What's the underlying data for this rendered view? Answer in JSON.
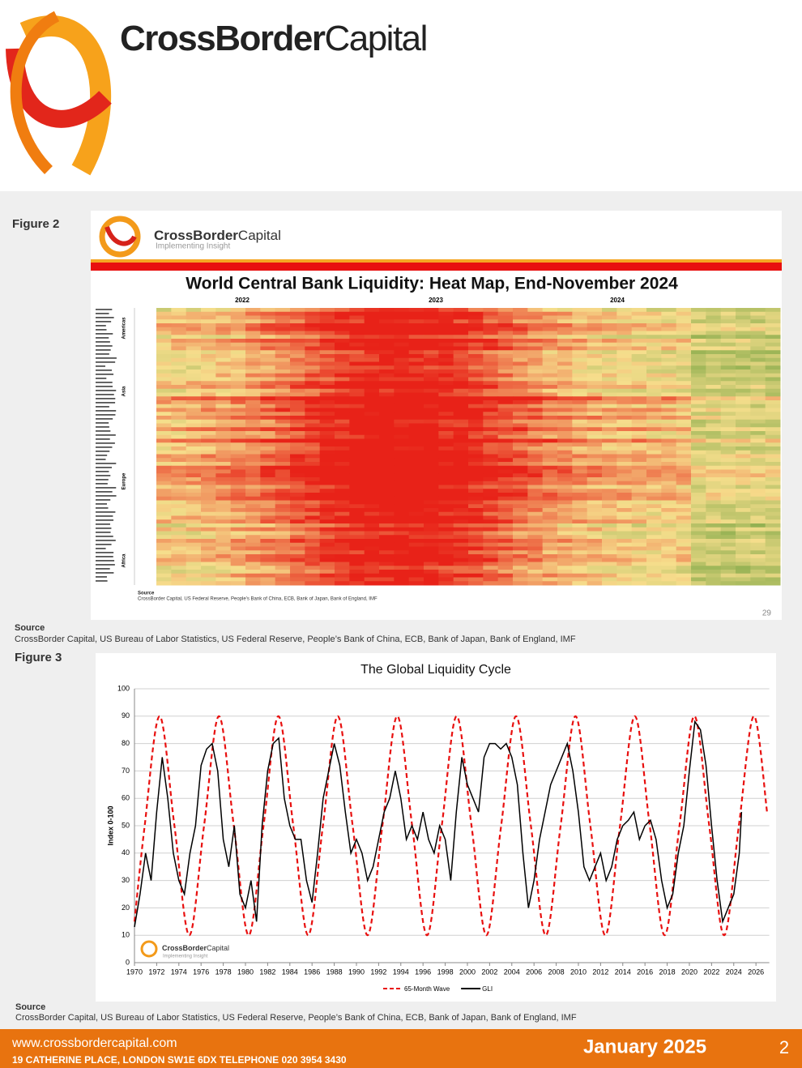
{
  "header": {
    "brand_bold": "CrossBorder",
    "brand_light": "Capital"
  },
  "figure2": {
    "label": "Figure 2",
    "logo_bold": "CrossBorder",
    "logo_light": "Capital",
    "logo_tagline": "Implementing Insight",
    "title": "World Central Bank Liquidity: Heat Map, End-November 2024",
    "years": [
      "2022",
      "2023",
      "2024"
    ],
    "regions": [
      "Americas",
      "Asia",
      "Europe",
      "Africa"
    ],
    "inner_source_label": "Source",
    "inner_source": "CrossBorder Capital, US Federal Reserve, People's Bank of China, ECB, Bank of Japan, Bank of England, IMF",
    "page_number": "29",
    "source_label": "Source",
    "source": "CrossBorder Capital, US Bureau of Labor Statistics, US Federal Reserve, People’s Bank of China, ECB, Bank of Japan, Bank of England, IMF"
  },
  "figure3": {
    "label": "Figure 3",
    "logo_bold": "CrossBorder",
    "logo_light": "Capital",
    "logo_tagline": "Implementing Insight",
    "source_label": "Source",
    "source": "CrossBorder Capital, US Bureau of Labor Statistics, US Federal Reserve, People’s Bank of China, ECB, Bank of Japan, Bank of England, IMF"
  },
  "chart_data": {
    "type": "line",
    "title": "The Global Liquidity Cycle",
    "y_label": "Index 0-100",
    "xlim": [
      1970,
      2027.2
    ],
    "ylim": [
      0,
      100
    ],
    "xticks": [
      1970,
      1972,
      1974,
      1976,
      1978,
      1980,
      1982,
      1984,
      1986,
      1988,
      1990,
      1992,
      1994,
      1996,
      1998,
      2000,
      2002,
      2004,
      2006,
      2008,
      2010,
      2012,
      2014,
      2016,
      2018,
      2020,
      2022,
      2024,
      2026
    ],
    "yticks": [
      0,
      10,
      20,
      30,
      40,
      50,
      60,
      70,
      80,
      90,
      100
    ],
    "series": [
      {
        "name": "65-Month Wave",
        "color": "#e8100f",
        "dashed": true,
        "smooth": true,
        "x": [
          1970,
          1970.92,
          1972.26,
          1973.6,
          1974.94,
          1976.27,
          1977.61,
          1978.95,
          1980.29,
          1981.63,
          1982.97,
          1984.31,
          1985.65,
          1986.98,
          1988.32,
          1989.66,
          1991.0,
          1992.34,
          1993.68,
          1995.02,
          1996.36,
          1997.69,
          1999.03,
          2000.37,
          2001.71,
          2003.04,
          2004.38,
          2005.72,
          2007.06,
          2008.4,
          2009.74,
          2011.08,
          2012.42,
          2013.75,
          2015.09,
          2016.43,
          2017.77,
          2019.11,
          2020.45,
          2021.79,
          2023.13,
          2024.46,
          2025.8,
          2027
        ],
        "values": [
          15,
          50,
          90,
          50,
          10,
          50,
          90,
          50,
          10,
          50,
          90,
          50,
          10,
          50,
          90,
          50,
          10,
          50,
          90,
          50,
          10,
          50,
          90,
          50,
          10,
          50,
          90,
          50,
          10,
          50,
          90,
          50,
          10,
          50,
          90,
          50,
          10,
          50,
          90,
          50,
          10,
          50,
          90,
          55
        ]
      },
      {
        "name": "GLI",
        "color": "#000000",
        "dashed": false,
        "smooth": false,
        "x": [
          1970,
          1970.5,
          1971,
          1971.5,
          1972,
          1972.5,
          1973,
          1973.5,
          1974,
          1974.5,
          1975,
          1975.5,
          1976,
          1976.5,
          1977,
          1977.5,
          1978,
          1978.5,
          1979,
          1979.5,
          1980,
          1980.5,
          1981,
          1981.5,
          1982,
          1982.5,
          1983,
          1983.5,
          1984,
          1984.5,
          1985,
          1985.5,
          1986,
          1986.5,
          1987,
          1987.5,
          1988,
          1988.5,
          1989,
          1989.5,
          1990,
          1990.5,
          1991,
          1991.5,
          1992,
          1992.5,
          1993,
          1993.5,
          1994,
          1994.5,
          1995,
          1995.5,
          1996,
          1996.5,
          1997,
          1997.5,
          1998,
          1998.5,
          1999,
          1999.5,
          2000,
          2000.5,
          2001,
          2001.5,
          2002,
          2002.5,
          2003,
          2003.5,
          2004,
          2004.5,
          2005,
          2005.5,
          2006,
          2006.5,
          2007,
          2007.5,
          2008,
          2008.5,
          2009,
          2009.5,
          2010,
          2010.5,
          2011,
          2011.5,
          2012,
          2012.5,
          2013,
          2013.5,
          2014,
          2014.5,
          2015,
          2015.5,
          2016,
          2016.5,
          2017,
          2017.5,
          2018,
          2018.5,
          2019,
          2019.5,
          2020,
          2020.5,
          2021,
          2021.5,
          2022,
          2022.5,
          2023,
          2023.5,
          2024,
          2024.5,
          2024.7
        ],
        "values": [
          13,
          25,
          40,
          30,
          55,
          75,
          60,
          40,
          30,
          25,
          40,
          50,
          72,
          78,
          80,
          70,
          45,
          35,
          50,
          25,
          20,
          30,
          15,
          50,
          70,
          80,
          82,
          60,
          50,
          45,
          45,
          30,
          22,
          40,
          60,
          70,
          80,
          72,
          55,
          40,
          45,
          40,
          30,
          35,
          45,
          55,
          60,
          70,
          60,
          45,
          50,
          45,
          55,
          45,
          40,
          50,
          45,
          30,
          55,
          75,
          65,
          60,
          55,
          75,
          80,
          80,
          78,
          80,
          75,
          65,
          40,
          20,
          30,
          45,
          55,
          65,
          70,
          75,
          80,
          70,
          55,
          35,
          30,
          35,
          40,
          30,
          35,
          45,
          50,
          52,
          55,
          45,
          50,
          52,
          45,
          30,
          20,
          25,
          40,
          50,
          70,
          88,
          85,
          72,
          50,
          30,
          15,
          20,
          25,
          40,
          55
        ]
      }
    ]
  },
  "footer": {
    "website": "www.crossbordercapital.com",
    "address": "19 CATHERINE PLACE, LONDON SW1E 6DX  TELEPHONE  020 3954 3430",
    "date": "January 2025",
    "page": "2"
  }
}
